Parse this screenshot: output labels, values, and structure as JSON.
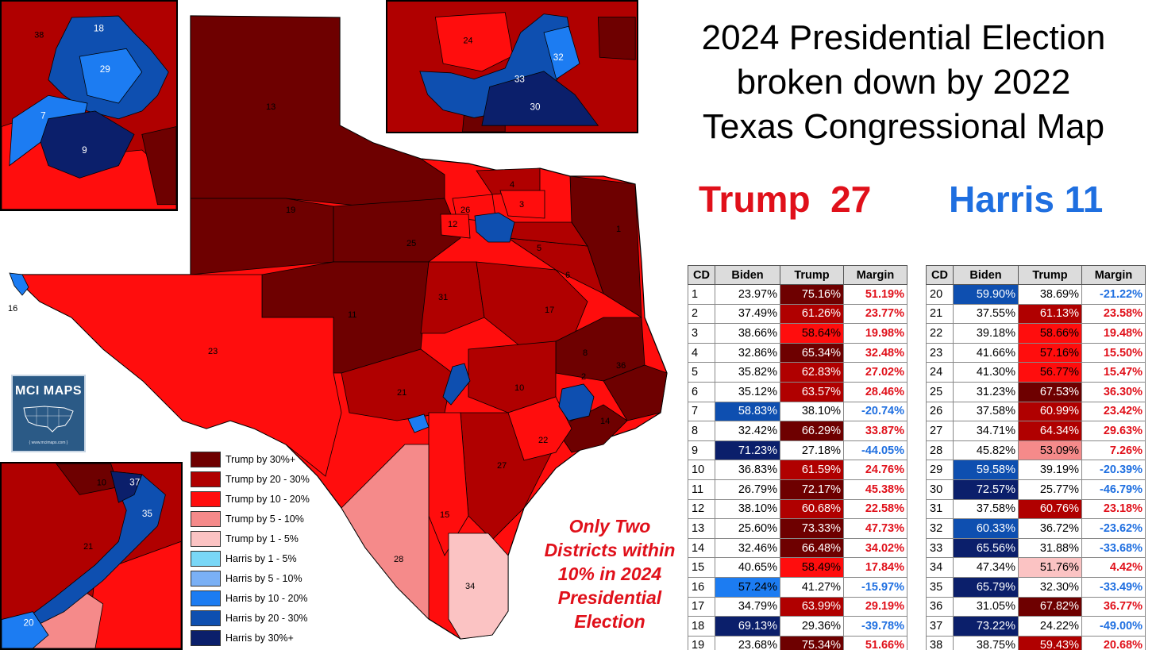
{
  "title_lines": [
    "2024 Presidential Election",
    "broken down by 2022",
    "Texas Congressional Map"
  ],
  "score": {
    "trump_label": "Trump",
    "trump_count": "27",
    "harris_label": "Harris",
    "harris_count": "11"
  },
  "note_lines": [
    "Only Two",
    "Districts within",
    "10% in 2024",
    "Presidential",
    "Election"
  ],
  "logo": {
    "title": "MCI MAPS",
    "url": "{ www.mcimaps.com }"
  },
  "legend": [
    {
      "label": "Trump by 30%+",
      "color": "#6e0000"
    },
    {
      "label": "Trump by 20 - 30%",
      "color": "#b00000"
    },
    {
      "label": "Trump by 10 - 20%",
      "color": "#ff0d0d"
    },
    {
      "label": "Trump by 5 - 10%",
      "color": "#f58a8a"
    },
    {
      "label": "Trump by 1 - 5%",
      "color": "#fbc3c3"
    },
    {
      "label": "Harris by 1 - 5%",
      "color": "#79d7f7"
    },
    {
      "label": "Harris by 5 - 10%",
      "color": "#7ab0f5"
    },
    {
      "label": "Harris by 10 - 20%",
      "color": "#1c7cf2"
    },
    {
      "label": "Harris by 20 - 30%",
      "color": "#0e4fb0"
    },
    {
      "label": "Harris by 30%+",
      "color": "#0b1f6b"
    }
  ],
  "table_headers": [
    "CD",
    "Biden",
    "Trump",
    "Margin"
  ],
  "districts": [
    {
      "cd": "1",
      "biden": "23.97%",
      "trump": "75.16%",
      "margin": "51.19%"
    },
    {
      "cd": "2",
      "biden": "37.49%",
      "trump": "61.26%",
      "margin": "23.77%"
    },
    {
      "cd": "3",
      "biden": "38.66%",
      "trump": "58.64%",
      "margin": "19.98%"
    },
    {
      "cd": "4",
      "biden": "32.86%",
      "trump": "65.34%",
      "margin": "32.48%"
    },
    {
      "cd": "5",
      "biden": "35.82%",
      "trump": "62.83%",
      "margin": "27.02%"
    },
    {
      "cd": "6",
      "biden": "35.12%",
      "trump": "63.57%",
      "margin": "28.46%"
    },
    {
      "cd": "7",
      "biden": "58.83%",
      "trump": "38.10%",
      "margin": "-20.74%"
    },
    {
      "cd": "8",
      "biden": "32.42%",
      "trump": "66.29%",
      "margin": "33.87%"
    },
    {
      "cd": "9",
      "biden": "71.23%",
      "trump": "27.18%",
      "margin": "-44.05%"
    },
    {
      "cd": "10",
      "biden": "36.83%",
      "trump": "61.59%",
      "margin": "24.76%"
    },
    {
      "cd": "11",
      "biden": "26.79%",
      "trump": "72.17%",
      "margin": "45.38%"
    },
    {
      "cd": "12",
      "biden": "38.10%",
      "trump": "60.68%",
      "margin": "22.58%"
    },
    {
      "cd": "13",
      "biden": "25.60%",
      "trump": "73.33%",
      "margin": "47.73%"
    },
    {
      "cd": "14",
      "biden": "32.46%",
      "trump": "66.48%",
      "margin": "34.02%"
    },
    {
      "cd": "15",
      "biden": "40.65%",
      "trump": "58.49%",
      "margin": "17.84%"
    },
    {
      "cd": "16",
      "biden": "57.24%",
      "trump": "41.27%",
      "margin": "-15.97%"
    },
    {
      "cd": "17",
      "biden": "34.79%",
      "trump": "63.99%",
      "margin": "29.19%"
    },
    {
      "cd": "18",
      "biden": "69.13%",
      "trump": "29.36%",
      "margin": "-39.78%"
    },
    {
      "cd": "19",
      "biden": "23.68%",
      "trump": "75.34%",
      "margin": "51.66%"
    },
    {
      "cd": "20",
      "biden": "59.90%",
      "trump": "38.69%",
      "margin": "-21.22%"
    },
    {
      "cd": "21",
      "biden": "37.55%",
      "trump": "61.13%",
      "margin": "23.58%"
    },
    {
      "cd": "22",
      "biden": "39.18%",
      "trump": "58.66%",
      "margin": "19.48%"
    },
    {
      "cd": "23",
      "biden": "41.66%",
      "trump": "57.16%",
      "margin": "15.50%"
    },
    {
      "cd": "24",
      "biden": "41.30%",
      "trump": "56.77%",
      "margin": "15.47%"
    },
    {
      "cd": "25",
      "biden": "31.23%",
      "trump": "67.53%",
      "margin": "36.30%"
    },
    {
      "cd": "26",
      "biden": "37.58%",
      "trump": "60.99%",
      "margin": "23.42%"
    },
    {
      "cd": "27",
      "biden": "34.71%",
      "trump": "64.34%",
      "margin": "29.63%"
    },
    {
      "cd": "28",
      "biden": "45.82%",
      "trump": "53.09%",
      "margin": "7.26%"
    },
    {
      "cd": "29",
      "biden": "59.58%",
      "trump": "39.19%",
      "margin": "-20.39%"
    },
    {
      "cd": "30",
      "biden": "72.57%",
      "trump": "25.77%",
      "margin": "-46.79%"
    },
    {
      "cd": "31",
      "biden": "37.58%",
      "trump": "60.76%",
      "margin": "23.18%"
    },
    {
      "cd": "32",
      "biden": "60.33%",
      "trump": "36.72%",
      "margin": "-23.62%"
    },
    {
      "cd": "33",
      "biden": "65.56%",
      "trump": "31.88%",
      "margin": "-33.68%"
    },
    {
      "cd": "34",
      "biden": "47.34%",
      "trump": "51.76%",
      "margin": "4.42%"
    },
    {
      "cd": "35",
      "biden": "65.79%",
      "trump": "32.30%",
      "margin": "-33.49%"
    },
    {
      "cd": "36",
      "biden": "31.05%",
      "trump": "67.82%",
      "margin": "36.77%"
    },
    {
      "cd": "37",
      "biden": "73.22%",
      "trump": "24.22%",
      "margin": "-49.00%"
    },
    {
      "cd": "38",
      "biden": "38.75%",
      "trump": "59.43%",
      "margin": "20.68%"
    }
  ],
  "map_labels": {
    "main": [
      "13",
      "19",
      "25",
      "11",
      "23",
      "21",
      "31",
      "17",
      "6",
      "5",
      "4",
      "3",
      "26",
      "12",
      "1",
      "8",
      "36",
      "2",
      "14",
      "10",
      "22",
      "27",
      "15",
      "28",
      "34",
      "16"
    ],
    "inset_houston": [
      "38",
      "18",
      "29",
      "7",
      "9"
    ],
    "inset_dallas": [
      "24",
      "32",
      "33",
      "30"
    ],
    "inset_austin_sa": [
      "10",
      "37",
      "35",
      "21",
      "20"
    ]
  },
  "colors": {
    "trump_text": "#e0101a",
    "harris_text": "#1f6fe0",
    "trump_30": "#6e0000",
    "trump_20": "#b00000",
    "trump_10": "#ff0d0d",
    "trump_5": "#f58a8a",
    "trump_1": "#fbc3c3",
    "harris_1": "#79d7f7",
    "harris_5": "#7ab0f5",
    "harris_10": "#1c7cf2",
    "harris_20": "#0e4fb0",
    "harris_30": "#0b1f6b"
  }
}
